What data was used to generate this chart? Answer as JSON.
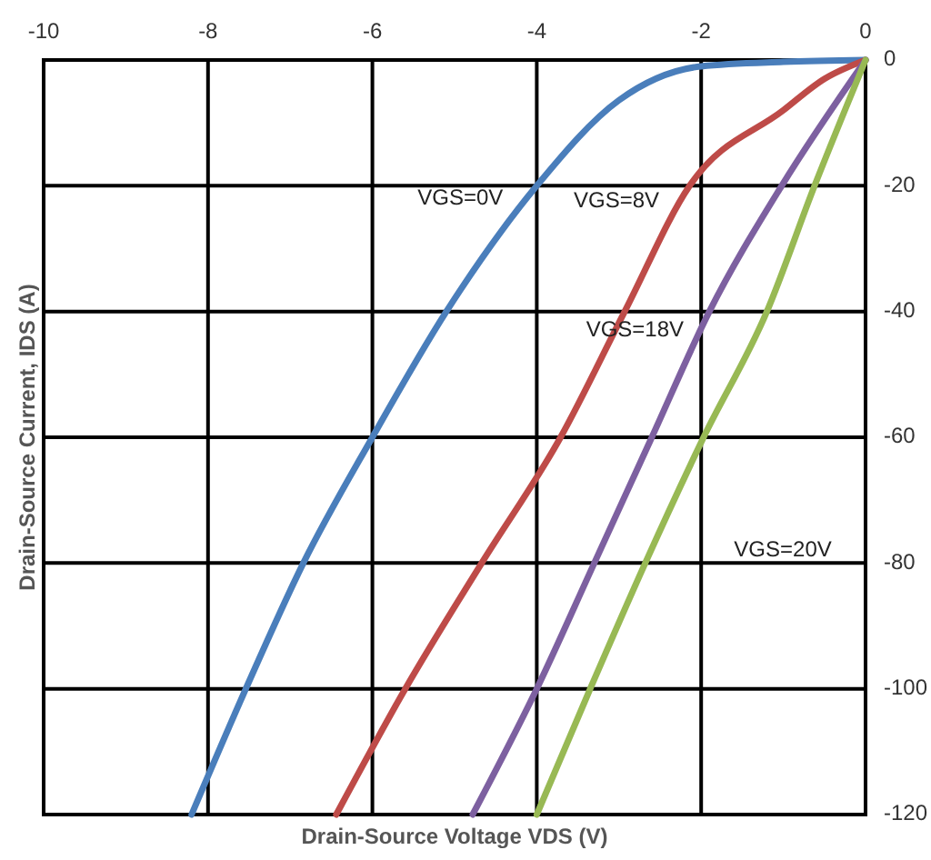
{
  "chart_data": {
    "type": "line",
    "xlabel": "Drain-Source Voltage VDS (V)",
    "ylabel": "Drain-Source Current, IDS (A)",
    "xlim": [
      -10,
      0
    ],
    "xticks": [
      -10,
      -8,
      -6,
      -4,
      -2,
      0
    ],
    "ylim": [
      -120,
      0
    ],
    "yticks": [
      -120,
      -100,
      -80,
      -60,
      -40,
      -20,
      0
    ],
    "grid": true,
    "marker": "none",
    "line_style": "solid",
    "series": [
      {
        "name": "VGS=0V",
        "color": "#4a7ebb",
        "x": [
          0,
          -1,
          -2,
          -3,
          -4,
          -5.1,
          -6,
          -6.84,
          -7.54,
          -8.2
        ],
        "values": [
          0,
          -0.3,
          -1,
          -6.4,
          -20,
          -40,
          -60,
          -80,
          -100,
          -120
        ]
      },
      {
        "name": "VGS=8V",
        "color": "#be4b48",
        "x": [
          0,
          -0.5,
          -1,
          -2.14,
          -2.93,
          -3.71,
          -4.67,
          -5.6,
          -6.44
        ],
        "values": [
          0,
          -3,
          -8,
          -20,
          -40,
          -60,
          -80,
          -100,
          -120
        ]
      },
      {
        "name": "VGS=18V",
        "color": "#7d60a0",
        "x": [
          0,
          -1.02,
          -1.9,
          -2.6,
          -3.3,
          -4,
          -4.78
        ],
        "values": [
          0,
          -20,
          -40,
          -60,
          -80,
          -100,
          -120
        ]
      },
      {
        "name": "VGS=20V",
        "color": "#98b954",
        "x": [
          0,
          -0.62,
          -1.2,
          -1.97,
          -2.68,
          -3.35,
          -4
        ],
        "values": [
          0,
          -20,
          -40,
          -60,
          -80,
          -100,
          -120
        ]
      }
    ]
  }
}
